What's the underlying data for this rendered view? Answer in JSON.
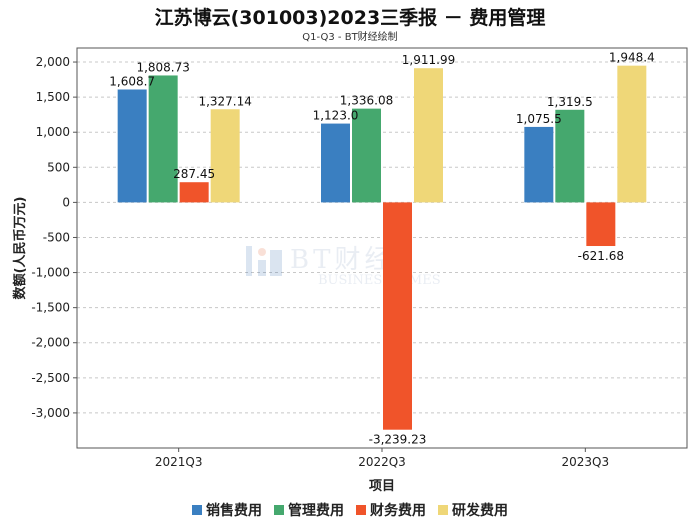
{
  "title": "江苏博云(301003)2023三季报 － 费用管理",
  "subtitle": "Q1-Q3 - BT财经绘制",
  "watermark": {
    "main": "BT财经",
    "sub": "BUSINESS TIMES"
  },
  "chart_data": {
    "type": "bar",
    "categories": [
      "2021Q3",
      "2022Q3",
      "2023Q3"
    ],
    "xlabel": "项目",
    "ylabel": "数额(人民币万元)",
    "ylim": [
      -3500,
      2200
    ],
    "yticks": [
      2000,
      1500,
      1000,
      500,
      0,
      -500,
      -1000,
      -1500,
      -2000,
      -2500,
      -3000
    ],
    "ytick_labels": [
      "2,000",
      "1,500",
      "1,000",
      "500",
      "0",
      "-500",
      "-1,000",
      "-1,500",
      "-2,000",
      "-2,500",
      "-3,000"
    ],
    "grid": true,
    "legend_position": "bottom",
    "series": [
      {
        "name": "销售费用",
        "color": "#3a7fc1",
        "values": [
          1608.7,
          1123.0,
          1075.5
        ],
        "labels": [
          "1,608.7",
          "1,123.0",
          "1,075.5"
        ]
      },
      {
        "name": "管理费用",
        "color": "#45a86e",
        "values": [
          1808.73,
          1336.08,
          1319.5
        ],
        "labels": [
          "1,808.73",
          "1,336.08",
          "1,319.5"
        ]
      },
      {
        "name": "财务费用",
        "color": "#f0542a",
        "values": [
          287.45,
          -3239.23,
          -621.68
        ],
        "labels": [
          "287.45",
          "-3,239.23",
          "-621.68"
        ]
      },
      {
        "name": "研发费用",
        "color": "#efd778",
        "values": [
          1327.14,
          1911.99,
          1948.4
        ],
        "labels": [
          "1,327.14",
          "1,911.99",
          "1,948.4"
        ]
      }
    ]
  }
}
